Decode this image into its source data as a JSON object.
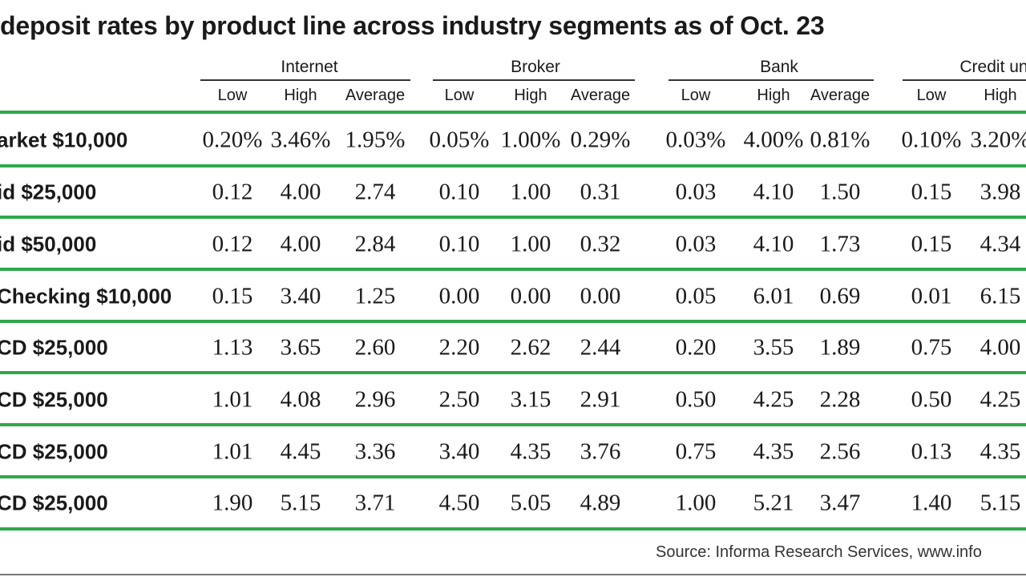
{
  "colors": {
    "accent_rule": "#2ea84a",
    "text": "#1a1a1a"
  },
  "table": {
    "title": "deposit rates by product line across industry segments as of Oct. 23",
    "source": "Source: Informa Research Services, www.info",
    "groups": [
      {
        "label": "Internet",
        "columns": [
          "Low",
          "High",
          "Average"
        ]
      },
      {
        "label": "Broker",
        "columns": [
          "Low",
          "High",
          "Average"
        ]
      },
      {
        "label": "Bank",
        "columns": [
          "Low",
          "High",
          "Average"
        ]
      },
      {
        "label": "Credit un",
        "columns": [
          "Low",
          "High"
        ]
      }
    ],
    "rows": [
      {
        "label": "arket $10,000",
        "values": [
          "0.20%",
          "3.46%",
          "1.95%",
          "0.05%",
          "1.00%",
          "0.29%",
          "0.03%",
          "4.00%",
          "0.81%",
          "0.10%",
          "3.20%"
        ]
      },
      {
        "label": "id $25,000",
        "values": [
          "0.12",
          "4.00",
          "2.74",
          "0.10",
          "1.00",
          "0.31",
          "0.03",
          "4.10",
          "1.50",
          "0.15",
          "3.98"
        ]
      },
      {
        "label": "id $50,000",
        "values": [
          "0.12",
          "4.00",
          "2.84",
          "0.10",
          "1.00",
          "0.32",
          "0.03",
          "4.10",
          "1.73",
          "0.15",
          "4.34"
        ]
      },
      {
        "label": "Checking $10,000",
        "values": [
          "0.15",
          "3.40",
          "1.25",
          "0.00",
          "0.00",
          "0.00",
          "0.05",
          "6.01",
          "0.69",
          "0.01",
          "6.15"
        ]
      },
      {
        "label": "CD $25,000",
        "values": [
          "1.13",
          "3.65",
          "2.60",
          "2.20",
          "2.62",
          "2.44",
          "0.20",
          "3.55",
          "1.89",
          "0.75",
          "4.00"
        ]
      },
      {
        "label": "CD $25,000",
        "values": [
          "1.01",
          "4.08",
          "2.96",
          "2.50",
          "3.15",
          "2.91",
          "0.50",
          "4.25",
          "2.28",
          "0.50",
          "4.25"
        ]
      },
      {
        "label": "CD $25,000",
        "values": [
          "1.01",
          "4.45",
          "3.36",
          "3.40",
          "4.35",
          "3.76",
          "0.75",
          "4.35",
          "2.56",
          "0.13",
          "4.35"
        ]
      },
      {
        "label": "CD $25,000",
        "values": [
          "1.90",
          "5.15",
          "3.71",
          "4.50",
          "5.05",
          "4.89",
          "1.00",
          "5.21",
          "3.47",
          "1.40",
          "5.15"
        ]
      }
    ]
  },
  "chart_data": {
    "type": "table",
    "title": "deposit rates by product line across industry segments as of Oct. 23",
    "column_groups": [
      "Internet",
      "Broker",
      "Bank",
      "Credit un"
    ],
    "columns": [
      "Low",
      "High",
      "Average",
      "Low",
      "High",
      "Average",
      "Low",
      "High",
      "Average",
      "Low",
      "High"
    ],
    "row_labels": [
      "arket $10,000",
      "id $25,000",
      "id $50,000",
      "Checking $10,000",
      "CD $25,000",
      "CD $25,000",
      "CD $25,000",
      "CD $25,000"
    ],
    "values": [
      [
        "0.20%",
        "3.46%",
        "1.95%",
        "0.05%",
        "1.00%",
        "0.29%",
        "0.03%",
        "4.00%",
        "0.81%",
        "0.10%",
        "3.20%"
      ],
      [
        "0.12",
        "4.00",
        "2.74",
        "0.10",
        "1.00",
        "0.31",
        "0.03",
        "4.10",
        "1.50",
        "0.15",
        "3.98"
      ],
      [
        "0.12",
        "4.00",
        "2.84",
        "0.10",
        "1.00",
        "0.32",
        "0.03",
        "4.10",
        "1.73",
        "0.15",
        "4.34"
      ],
      [
        "0.15",
        "3.40",
        "1.25",
        "0.00",
        "0.00",
        "0.00",
        "0.05",
        "6.01",
        "0.69",
        "0.01",
        "6.15"
      ],
      [
        "1.13",
        "3.65",
        "2.60",
        "2.20",
        "2.62",
        "2.44",
        "0.20",
        "3.55",
        "1.89",
        "0.75",
        "4.00"
      ],
      [
        "1.01",
        "4.08",
        "2.96",
        "2.50",
        "3.15",
        "2.91",
        "0.50",
        "4.25",
        "2.28",
        "0.50",
        "4.25"
      ],
      [
        "1.01",
        "4.45",
        "3.36",
        "3.40",
        "4.35",
        "3.76",
        "0.75",
        "4.35",
        "2.56",
        "0.13",
        "4.35"
      ],
      [
        "1.90",
        "5.15",
        "3.71",
        "4.50",
        "5.05",
        "4.89",
        "1.00",
        "5.21",
        "3.47",
        "1.40",
        "5.15"
      ]
    ]
  }
}
